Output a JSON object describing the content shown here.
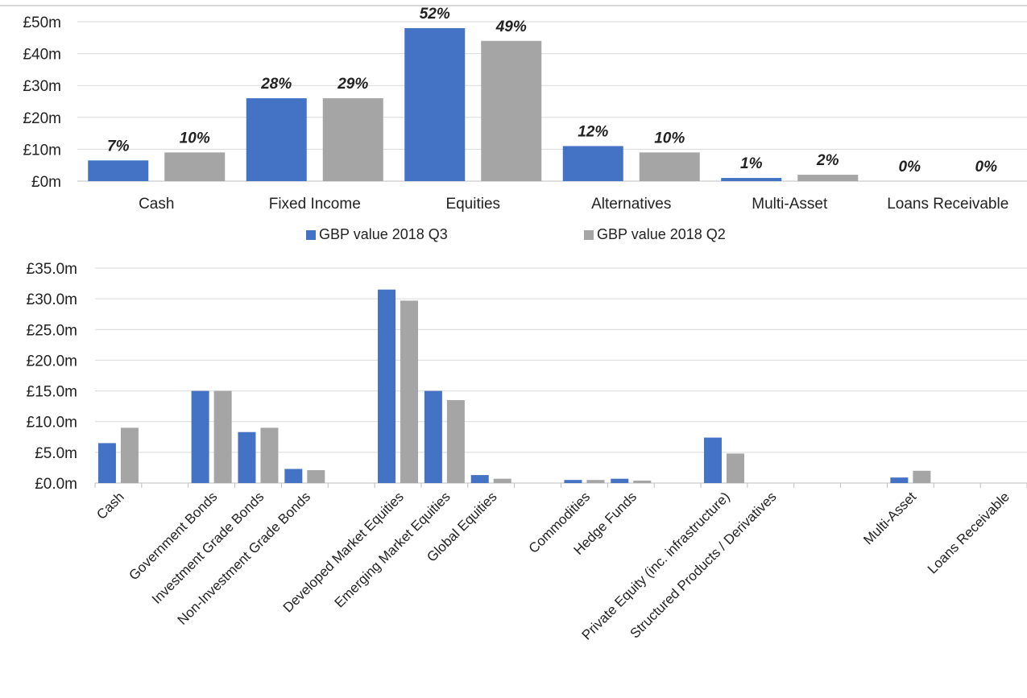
{
  "chart_data": [
    {
      "type": "bar",
      "categories": [
        "Cash",
        "Fixed Income",
        "Equities",
        "Alternatives",
        "Multi-Asset",
        "Loans Receivable"
      ],
      "series": [
        {
          "name": "GBP value 2018 Q3",
          "values": [
            6.5,
            26,
            48,
            11,
            1,
            0
          ],
          "data_labels": [
            "7%",
            "28%",
            "52%",
            "12%",
            "1%",
            "0%"
          ]
        },
        {
          "name": "GBP value 2018 Q2",
          "values": [
            9,
            26,
            44,
            9,
            2,
            0
          ],
          "data_labels": [
            "10%",
            "29%",
            "49%",
            "10%",
            "2%",
            "0%"
          ]
        }
      ],
      "ylim": [
        0,
        50
      ],
      "yticks": [
        0,
        10,
        20,
        30,
        40,
        50
      ],
      "ytick_labels": [
        "£0m",
        "£10m",
        "£20m",
        "£30m",
        "£40m",
        "£50m"
      ],
      "grid": true,
      "legend": "bottom"
    },
    {
      "type": "bar",
      "categories": [
        "Cash",
        "",
        "Government Bonds",
        "Investment Grade Bonds",
        "Non-Investment Grade Bonds",
        "",
        "Developed Market Equities",
        "Emerging Market Equities",
        "Global Equities",
        "",
        "Commodities",
        "Hedge Funds",
        "",
        "Private Equity (inc. infrastructure)",
        "Structured Products / Derivatives",
        "",
        "",
        "Multi-Asset",
        "",
        "Loans Receivable"
      ],
      "series": [
        {
          "name": "GBP value 2018 Q3",
          "values": [
            6.5,
            0,
            15,
            8.3,
            2.3,
            0,
            31.5,
            15,
            1.3,
            0,
            0.5,
            0.7,
            0,
            7.4,
            0,
            0,
            0,
            0.9,
            0,
            0
          ]
        },
        {
          "name": "GBP value 2018 Q2",
          "values": [
            9,
            0,
            15,
            9,
            2.1,
            0,
            29.7,
            13.5,
            0.7,
            0,
            0.5,
            0.4,
            0,
            4.8,
            0,
            0,
            0,
            2,
            0,
            0
          ]
        }
      ],
      "ylim": [
        0,
        35
      ],
      "yticks": [
        0,
        5,
        10,
        15,
        20,
        25,
        30,
        35
      ],
      "ytick_labels": [
        "£0.0m",
        "£5.0m",
        "£10.0m",
        "£15.0m",
        "£20.0m",
        "£25.0m",
        "£30.0m",
        "£35.0m"
      ],
      "grid": true,
      "legend": "none"
    }
  ],
  "colors": {
    "q3": "#4472C4",
    "q2": "#A5A5A5",
    "grid": "#D9D9D9",
    "axis": "#BFBFBF",
    "text": "#222222"
  }
}
